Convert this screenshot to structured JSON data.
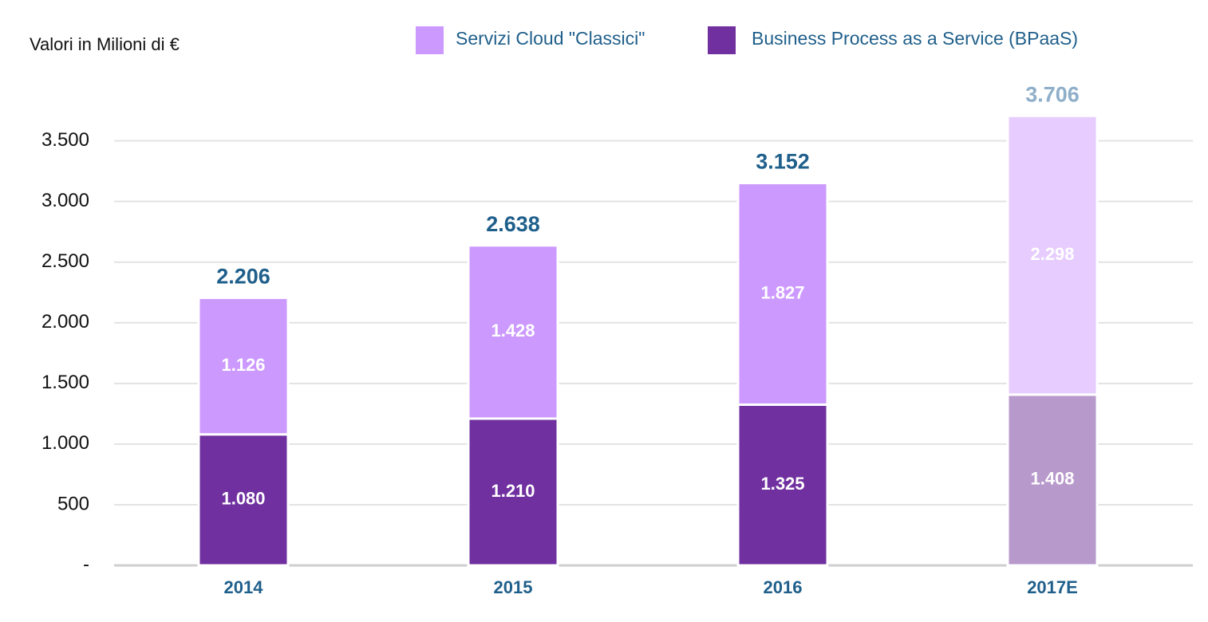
{
  "chart_data": {
    "type": "stacked_bar",
    "y_axis_label": "Valori in Milioni di €",
    "categories": [
      "2014",
      "2015",
      "2016",
      "2017E"
    ],
    "series": [
      {
        "name": "Business Process as a Service (BPaaS)",
        "color": "#7030a0",
        "colors": [
          "#7030a0",
          "#7030a0",
          "#7030a0",
          "#b899cc"
        ],
        "values": [
          1080,
          1210,
          1325,
          1408
        ],
        "value_labels": [
          "1.080",
          "1.210",
          "1.325",
          "1.408"
        ]
      },
      {
        "name": "Servizi Cloud \"Classici\"",
        "color": "#cc99ff",
        "colors": [
          "#cc99ff",
          "#cc99ff",
          "#cc99ff",
          "#e6ccff"
        ],
        "values": [
          1126,
          1428,
          1827,
          2298
        ],
        "value_labels": [
          "1.126",
          "1.428",
          "1.827",
          "2.298"
        ]
      }
    ],
    "totals": {
      "values": [
        2206,
        2638,
        3152,
        3706
      ],
      "value_labels": [
        "2.206",
        "2.638",
        "3.152",
        "3.706"
      ],
      "colors": [
        "#1f5f8b",
        "#1f5f8b",
        "#1f5f8b",
        "#8eaec9"
      ]
    },
    "ylim": [
      0,
      3800
    ],
    "yticks": [
      {
        "value": 0,
        "label": "-"
      },
      500,
      {
        "value": 1000,
        "label": "1.000"
      },
      {
        "value": 1500,
        "label": "1.500"
      },
      {
        "value": 2000,
        "label": "2.000"
      },
      {
        "value": 2500,
        "label": "2.500"
      },
      {
        "value": 3000,
        "label": "3.000"
      },
      {
        "value": 3500,
        "label": "3.500"
      }
    ],
    "grid": true,
    "legend": "top"
  }
}
